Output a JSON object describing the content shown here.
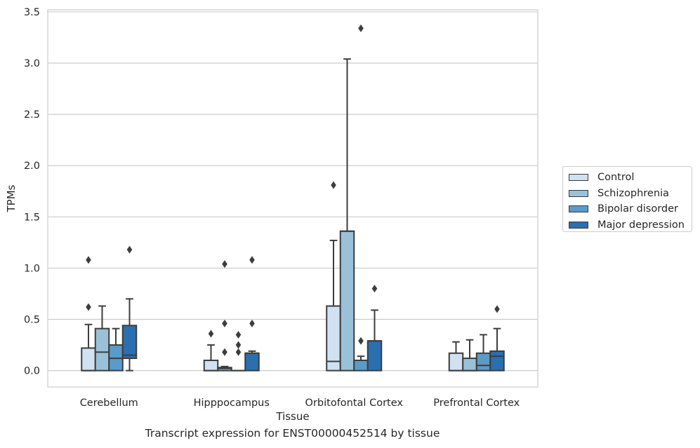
{
  "caption": "Transcript expression for ENST00000452514 by tissue",
  "chart_data": {
    "type": "boxplot",
    "xlabel": "Tissue",
    "ylabel": "TPMs",
    "ylim": [
      -0.16,
      3.52
    ],
    "yticks": [
      0.0,
      0.5,
      1.0,
      1.5,
      2.0,
      2.5,
      3.0,
      3.5
    ],
    "ytick_labels": [
      "0.0",
      "0.5",
      "1.0",
      "1.5",
      "2.0",
      "2.5",
      "3.0",
      "3.5"
    ],
    "grid": "horizontal",
    "legend_position": "right",
    "categories": [
      "Cerebellum",
      "Hipppocampus",
      "Orbitofontal Cortex",
      "Prefrontal Cortex"
    ],
    "series": [
      {
        "name": "Control",
        "color": "#d0e1f2",
        "boxes": [
          {
            "q1": 0.0,
            "median": 0.0,
            "q3": 0.22,
            "whisker_low": 0.0,
            "whisker_high": 0.45,
            "fliers": [
              0.62,
              1.08
            ]
          },
          {
            "q1": 0.0,
            "median": 0.0,
            "q3": 0.1,
            "whisker_low": 0.0,
            "whisker_high": 0.25,
            "fliers": [
              0.36
            ]
          },
          {
            "q1": 0.0,
            "median": 0.09,
            "q3": 0.63,
            "whisker_low": 0.0,
            "whisker_high": 1.27,
            "fliers": [
              1.81
            ]
          },
          {
            "q1": 0.0,
            "median": 0.0,
            "q3": 0.17,
            "whisker_low": 0.0,
            "whisker_high": 0.28,
            "fliers": []
          }
        ]
      },
      {
        "name": "Schizophrenia",
        "color": "#9ac1d8",
        "boxes": [
          {
            "q1": 0.0,
            "median": 0.18,
            "q3": 0.41,
            "whisker_low": 0.0,
            "whisker_high": 0.63,
            "fliers": []
          },
          {
            "q1": 0.0,
            "median": 0.02,
            "q3": 0.03,
            "whisker_low": 0.0,
            "whisker_high": 0.04,
            "fliers": [
              0.18,
              0.46,
              1.04
            ]
          },
          {
            "q1": 0.0,
            "median": 1.36,
            "q3": 1.36,
            "whisker_low": 0.0,
            "whisker_high": 3.04,
            "fliers": []
          },
          {
            "q1": 0.0,
            "median": 0.0,
            "q3": 0.12,
            "whisker_low": 0.0,
            "whisker_high": 0.3,
            "fliers": []
          }
        ]
      },
      {
        "name": "Bipolar disorder",
        "color": "#5a9bc9",
        "boxes": [
          {
            "q1": 0.0,
            "median": 0.12,
            "q3": 0.25,
            "whisker_low": 0.0,
            "whisker_high": 0.41,
            "fliers": []
          },
          {
            "q1": 0.0,
            "median": 0.0,
            "q3": 0.0,
            "whisker_low": 0.0,
            "whisker_high": 0.0,
            "fliers": [
              0.18,
              0.25,
              0.35
            ]
          },
          {
            "q1": 0.0,
            "median": 0.1,
            "q3": 0.1,
            "whisker_low": 0.0,
            "whisker_high": 0.14,
            "fliers": [
              0.29,
              3.34
            ]
          },
          {
            "q1": 0.0,
            "median": 0.05,
            "q3": 0.17,
            "whisker_low": 0.0,
            "whisker_high": 0.35,
            "fliers": []
          }
        ]
      },
      {
        "name": "Major depression",
        "color": "#2a6fb0",
        "boxes": [
          {
            "q1": 0.12,
            "median": 0.15,
            "q3": 0.44,
            "whisker_low": 0.0,
            "whisker_high": 0.7,
            "fliers": [
              1.18
            ]
          },
          {
            "q1": 0.0,
            "median": 0.17,
            "q3": 0.17,
            "whisker_low": 0.0,
            "whisker_high": 0.19,
            "fliers": [
              0.46,
              1.08
            ]
          },
          {
            "q1": 0.0,
            "median": 0.29,
            "q3": 0.29,
            "whisker_low": 0.0,
            "whisker_high": 0.59,
            "fliers": [
              0.8
            ]
          },
          {
            "q1": 0.0,
            "median": 0.14,
            "q3": 0.19,
            "whisker_low": 0.0,
            "whisker_high": 0.41,
            "fliers": [
              0.6
            ]
          }
        ]
      }
    ]
  }
}
